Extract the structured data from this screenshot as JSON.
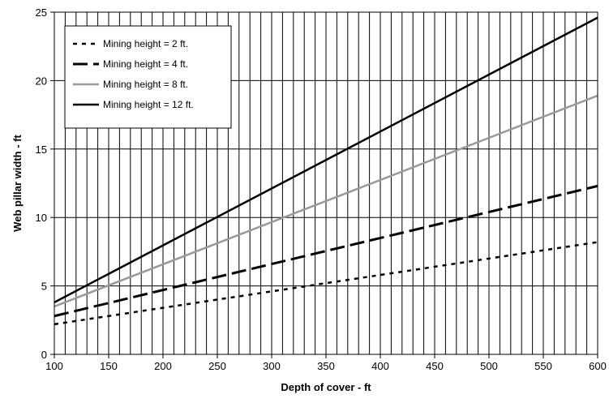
{
  "chart_data": {
    "type": "line",
    "title": "",
    "xlabel": "Depth of cover - ft",
    "ylabel": "Web pillar width - ft",
    "xlim": [
      100,
      600
    ],
    "ylim": [
      0,
      25
    ],
    "x_ticks": [
      100,
      150,
      200,
      250,
      300,
      350,
      400,
      450,
      500,
      550,
      600
    ],
    "y_ticks": [
      0,
      5,
      10,
      15,
      20,
      25
    ],
    "x_minor_grid_step": 10,
    "grid": true,
    "legend_position": "top-left",
    "series": [
      {
        "name": "Mining height = 2 ft.",
        "style": "dotted",
        "color": "#000000",
        "x": [
          100,
          600
        ],
        "y": [
          2.2,
          8.2
        ]
      },
      {
        "name": "Mining height = 4 ft.",
        "style": "dashed",
        "color": "#000000",
        "x": [
          100,
          600
        ],
        "y": [
          2.8,
          12.3
        ]
      },
      {
        "name": "Mining height = 8 ft.",
        "style": "solid",
        "color": "#999999",
        "x": [
          100,
          600
        ],
        "y": [
          3.5,
          18.9
        ]
      },
      {
        "name": "Mining height = 12 ft.",
        "style": "solid",
        "color": "#000000",
        "x": [
          100,
          600
        ],
        "y": [
          3.8,
          24.6
        ]
      }
    ]
  }
}
